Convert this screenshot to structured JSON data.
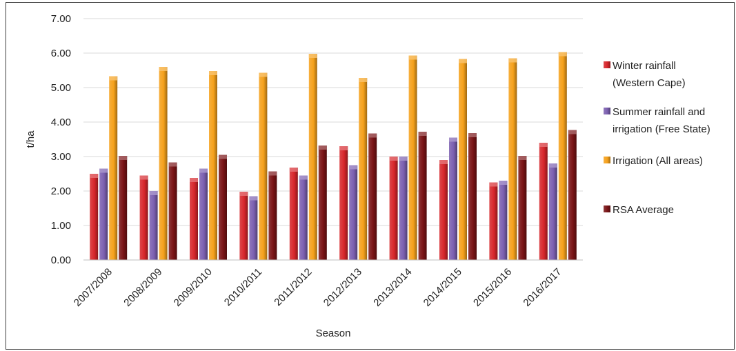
{
  "chart_data": {
    "type": "bar",
    "title": "",
    "xlabel": "Season",
    "ylabel": "t/ha",
    "ylim": [
      0,
      7
    ],
    "yticks": [
      "0.00",
      "1.00",
      "2.00",
      "3.00",
      "4.00",
      "5.00",
      "6.00",
      "7.00"
    ],
    "grid": true,
    "legend_position": "right",
    "categories": [
      "2007/2008",
      "2008/2009",
      "2009/2010",
      "2010/2011",
      "2011/2012",
      "2012/2013",
      "2013/2014",
      "2014/2015",
      "2015/2016",
      "2016/2017"
    ],
    "series": [
      {
        "name": "Winter rainfall (Western Cape)",
        "legend_lines": [
          "Winter rainfall",
          "(Western Cape)"
        ],
        "color": "#d7262b",
        "values": [
          2.5,
          2.45,
          2.38,
          1.98,
          2.68,
          3.3,
          3.0,
          2.9,
          2.25,
          3.4
        ]
      },
      {
        "name": "Summer rainfall and irrigation (Free State)",
        "legend_lines": [
          "Summer rainfall and",
          "irrigation (Free State)"
        ],
        "color": "#7b5fb0",
        "values": [
          2.65,
          2.0,
          2.65,
          1.85,
          2.45,
          2.75,
          3.0,
          3.55,
          2.3,
          2.8
        ]
      },
      {
        "name": "Irrigation (All areas)",
        "legend_lines": [
          "Irrigation (All areas)"
        ],
        "color": "#f5a11c",
        "values": [
          5.33,
          5.6,
          5.48,
          5.43,
          5.98,
          5.28,
          5.93,
          5.83,
          5.85,
          6.03
        ]
      },
      {
        "name": "RSA Average",
        "legend_lines": [
          "RSA Average"
        ],
        "color": "#7a1416",
        "values": [
          3.02,
          2.83,
          3.05,
          2.57,
          3.32,
          3.67,
          3.72,
          3.68,
          3.02,
          3.77
        ]
      }
    ]
  }
}
